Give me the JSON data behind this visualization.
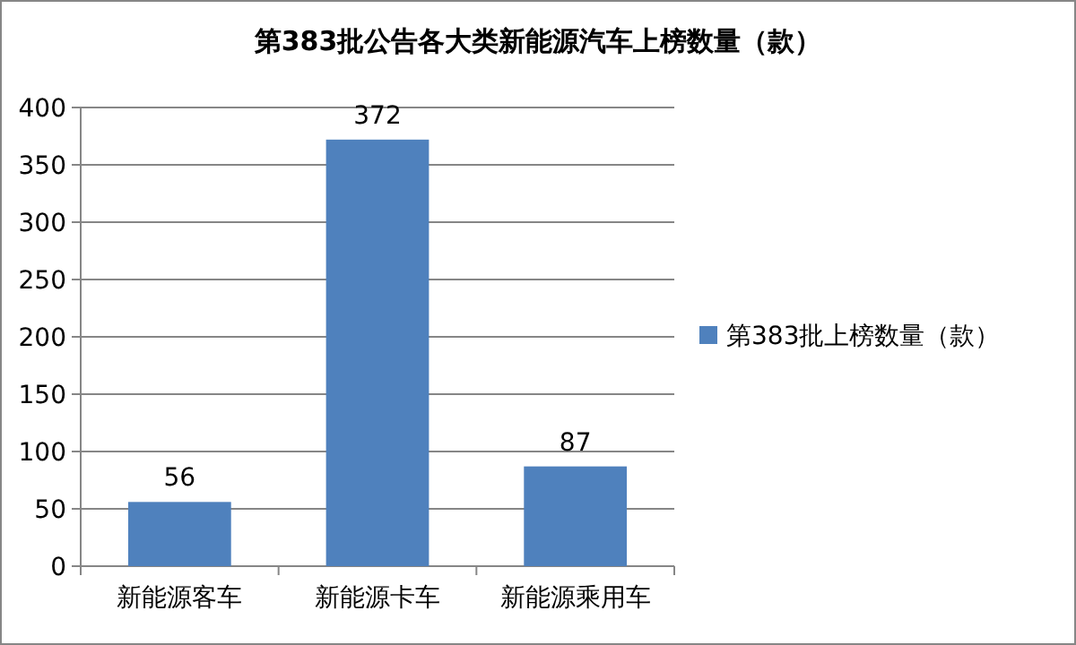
{
  "chart_data": {
    "type": "bar",
    "title": "第383批公告各大类新能源汽车上榜数量（款）",
    "categories": [
      "新能源客车",
      "新能源卡车",
      "新能源乘用车"
    ],
    "series": [
      {
        "name": "第383批上榜数量（款）",
        "color": "#4f81bd",
        "values": [
          56,
          372,
          87
        ]
      }
    ],
    "ylim": [
      0,
      400
    ],
    "yticks": [
      0,
      50,
      100,
      150,
      200,
      250,
      300,
      350,
      400
    ],
    "grid": "y",
    "legend": "right",
    "data_labels": true
  }
}
